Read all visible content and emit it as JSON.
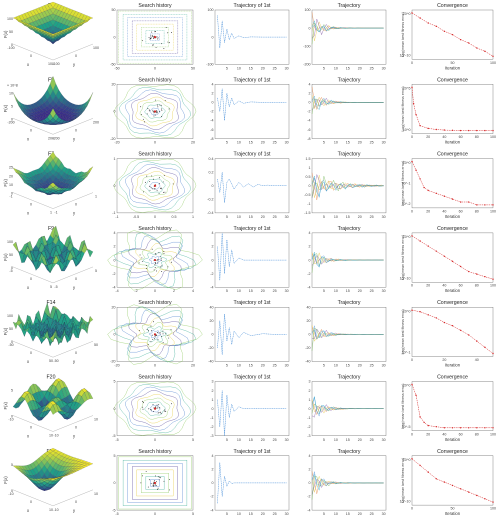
{
  "figure": {
    "rows": [
      {
        "func": "F4",
        "zlabel": "F(x)",
        "scale": "",
        "contour_title": "Search history",
        "first_title": "Trajectory of 1st",
        "traj_title": "Trajectory",
        "conv_title": "Convergence",
        "conv_ylabel": "Log(mean best fitness error)",
        "conv_xlabel": "Iteration"
      },
      {
        "func": "F5",
        "zlabel": "F(x)",
        "scale": "× 10^8",
        "contour_title": "Search history",
        "first_title": "Trajectory of 1st",
        "traj_title": "Trajectory",
        "conv_title": "Convergence",
        "conv_ylabel": "Log(mean best fitness error)",
        "conv_xlabel": "Iteration"
      },
      {
        "func": "F7",
        "zlabel": "F(x)",
        "scale": "",
        "contour_title": "Search history",
        "first_title": "Trajectory of 1st",
        "traj_title": "Trajectory",
        "conv_title": "Convergence",
        "conv_ylabel": "Log(mean best fitness error)",
        "conv_xlabel": "Iteration"
      },
      {
        "func": "F9",
        "zlabel": "F(x)",
        "scale": "",
        "contour_title": "Search history",
        "first_title": "Trajectory of 1st",
        "traj_title": "Trajectory",
        "conv_title": "Convergence",
        "conv_ylabel": "Log(mean best fitness error)",
        "conv_xlabel": "Iteration"
      },
      {
        "func": "F14",
        "zlabel": "F(x)",
        "scale": "",
        "contour_title": "Search history",
        "first_title": "Trajectory of 1st",
        "traj_title": "Trajectory",
        "conv_title": "Convergence",
        "conv_ylabel": "Log(mean best fitness error)",
        "conv_xlabel": "Iteration"
      },
      {
        "func": "F20",
        "zlabel": "F(x)",
        "scale": "",
        "contour_title": "Search history",
        "first_title": "Trajectory of 1st",
        "traj_title": "Trajectory",
        "conv_title": "Convergence",
        "conv_ylabel": "Log(mean best fitness error)",
        "conv_xlabel": "Iteration"
      },
      {
        "func": "F23",
        "zlabel": "F(x)",
        "scale": "",
        "contour_title": "Search history",
        "first_title": "Trajectory of 1st",
        "traj_title": "Trajectory",
        "conv_title": "Convergence",
        "conv_ylabel": "Log(mean best fitness error)",
        "conv_xlabel": "Iteration"
      }
    ],
    "colors": {
      "surface_low": "#3b2a8a",
      "surface_mid": "#1fa187",
      "surface_high": "#f8e825",
      "trajectory": "#4a90d9",
      "convergence": "#d62728",
      "search_points": "#222222"
    }
  },
  "chart_data": [
    {
      "type": "surface",
      "name": "F4",
      "xlim": [
        -100,
        100
      ],
      "ylim": [
        -100,
        100
      ],
      "xticks": [
        "-100",
        "0",
        "100"
      ],
      "yticks": [
        "-100",
        "0",
        "100"
      ],
      "zticks": [
        "0",
        "50",
        "100"
      ]
    },
    {
      "type": "surface",
      "name": "F5",
      "xticks": [
        "-200",
        "0",
        "200"
      ],
      "yticks": [
        "-200",
        "0",
        "200"
      ],
      "zticks": [
        "0",
        "5",
        "10"
      ]
    },
    {
      "type": "surface",
      "name": "F7",
      "xticks": [
        "-1",
        "0",
        "1"
      ],
      "yticks": [
        "-1",
        "0",
        "1"
      ],
      "zticks": [
        "0",
        "10",
        "20",
        "25"
      ]
    },
    {
      "type": "surface",
      "name": "F9",
      "xticks": [
        "-5",
        "0",
        "5"
      ],
      "yticks": [
        "-5",
        "0",
        "5"
      ],
      "zticks": [
        "0",
        "50",
        "100"
      ]
    },
    {
      "type": "surface",
      "name": "F14",
      "xticks": [
        "-50",
        "0",
        "50"
      ],
      "yticks": [
        "-50",
        "0",
        "50"
      ],
      "zticks": [
        "0",
        "50",
        "100"
      ]
    },
    {
      "type": "surface",
      "name": "F20",
      "xticks": [
        "-10",
        "0",
        "10"
      ],
      "yticks": [
        "-10",
        "0",
        "10"
      ],
      "zticks": [
        "0",
        "5"
      ]
    },
    {
      "type": "surface",
      "name": "F23",
      "xticks": [
        "-10",
        "0",
        "10"
      ],
      "yticks": [
        "-10",
        "0",
        "10"
      ],
      "zticks": [
        "0",
        "5"
      ]
    },
    {
      "type": "scatter",
      "name": "Search history F4",
      "xticks": [
        "-50",
        "0",
        "50"
      ],
      "yticks": [
        "-50",
        "0",
        "50"
      ]
    },
    {
      "type": "scatter",
      "name": "Search history F5",
      "xticks": [
        "-20",
        "0",
        "20"
      ],
      "yticks": [
        "-20",
        "0",
        "20"
      ]
    },
    {
      "type": "scatter",
      "name": "Search history F7",
      "xticks": [
        "-1",
        "-0.5",
        "0",
        "0.5",
        "1"
      ],
      "yticks": [
        "-1",
        "0",
        "1"
      ]
    },
    {
      "type": "scatter",
      "name": "Search history F9",
      "xticks": [
        "-4",
        "-2",
        "0",
        "2",
        "4"
      ],
      "yticks": [
        "-4",
        "-2",
        "0",
        "2",
        "4"
      ]
    },
    {
      "type": "scatter",
      "name": "Search history F14",
      "xticks": [
        "-20",
        "0",
        "20"
      ],
      "yticks": [
        "-20",
        "0",
        "20"
      ]
    },
    {
      "type": "scatter",
      "name": "Search history F20",
      "xticks": [
        "-5",
        "0",
        "5"
      ],
      "yticks": [
        "-5",
        "0",
        "5"
      ]
    },
    {
      "type": "scatter",
      "name": "Search history F23",
      "xticks": [
        "-5",
        "0",
        "5"
      ],
      "yticks": [
        "-5",
        "0",
        "5"
      ]
    },
    {
      "type": "line",
      "name": "Trajectory of 1st F4",
      "x": [
        1,
        2,
        3,
        4,
        5,
        6,
        7,
        8,
        10,
        12,
        15,
        20,
        25,
        30
      ],
      "y": [
        80,
        -40,
        60,
        -20,
        30,
        -10,
        15,
        -5,
        5,
        -2,
        1,
        0,
        0,
        0
      ],
      "ylim": [
        -100,
        100
      ],
      "xticks": [
        "5",
        "10",
        "15",
        "20",
        "25",
        "30"
      ],
      "yticks": [
        "-100",
        "0",
        "100"
      ]
    },
    {
      "type": "line",
      "name": "Trajectory of 1st F5",
      "x": [
        1,
        2,
        3,
        4,
        5,
        6,
        7,
        8,
        10,
        12,
        15,
        20,
        25,
        30
      ],
      "y": [
        1,
        -2,
        3,
        -4,
        2,
        -1,
        1,
        -0.5,
        0.3,
        -0.2,
        0.1,
        0,
        0,
        0
      ],
      "ylim": [
        -8,
        4
      ],
      "xticks": [
        "5",
        "10",
        "15",
        "20",
        "25",
        "30"
      ],
      "yticks": [
        "-8",
        "-6",
        "-4",
        "-2",
        "0",
        "2",
        "4"
      ]
    },
    {
      "type": "line",
      "name": "Trajectory of 1st F7",
      "x": [
        1,
        2,
        3,
        4,
        5,
        6,
        8,
        10,
        12,
        14,
        16,
        18,
        20,
        22,
        24,
        26,
        28,
        30
      ],
      "y": [
        0.1,
        -0.1,
        0.2,
        -0.25,
        0.05,
        0.1,
        -0.05,
        0.05,
        -0.02,
        0.03,
        -0.02,
        0.02,
        0,
        0.01,
        0,
        0,
        0,
        0
      ],
      "ylim": [
        -0.4,
        0.4
      ],
      "xticks": [
        "5",
        "10",
        "15",
        "20",
        "25",
        "30"
      ],
      "yticks": [
        "-0.4",
        "-0.2",
        "0",
        "0.2",
        "0.4"
      ]
    },
    {
      "type": "line",
      "name": "Trajectory of 1st F9",
      "x": [
        1,
        2,
        3,
        4,
        5,
        6,
        7,
        8,
        10,
        12,
        15,
        20,
        25,
        30
      ],
      "y": [
        2,
        -3,
        4,
        -2,
        3,
        -1,
        1.5,
        -0.5,
        0.3,
        0,
        0,
        0,
        0,
        0
      ],
      "ylim": [
        -4,
        4
      ],
      "xticks": [
        "5",
        "10",
        "15",
        "20",
        "25",
        "30"
      ],
      "yticks": [
        "-4",
        "-2",
        "0",
        "2",
        "4"
      ]
    },
    {
      "type": "line",
      "name": "Trajectory of 1st F14",
      "x": [
        1,
        2,
        3,
        4,
        5,
        6,
        7,
        8,
        10,
        12,
        15,
        20,
        25,
        30
      ],
      "y": [
        -20,
        20,
        -30,
        30,
        -10,
        10,
        -15,
        5,
        -5,
        3,
        -2,
        1,
        0,
        0
      ],
      "ylim": [
        -40,
        40
      ],
      "xticks": [
        "5",
        "10",
        "15",
        "20",
        "25",
        "30"
      ],
      "yticks": [
        "-40",
        "-20",
        "0",
        "20",
        "40"
      ]
    },
    {
      "type": "line",
      "name": "Trajectory of 1st F20",
      "x": [
        1,
        2,
        3,
        4,
        5,
        6,
        7,
        8,
        10,
        12,
        15,
        20,
        25,
        30
      ],
      "y": [
        1,
        -2,
        2,
        -3,
        1.5,
        -1,
        0.5,
        -0.3,
        0.2,
        0,
        0,
        0,
        0,
        0
      ],
      "ylim": [
        -3,
        3
      ],
      "xticks": [
        "5",
        "10",
        "15",
        "20",
        "25",
        "30"
      ],
      "yticks": [
        "-3",
        "-2",
        "-1",
        "0",
        "1",
        "2",
        "3"
      ]
    },
    {
      "type": "line",
      "name": "Trajectory of 1st F23",
      "x": [
        1,
        2,
        3,
        4,
        5,
        6,
        7,
        8,
        10,
        12,
        15,
        20,
        25,
        30
      ],
      "y": [
        -3,
        3,
        -2,
        1,
        -0.5,
        0.3,
        -0.1,
        0,
        0,
        0,
        0,
        0,
        0,
        0
      ],
      "ylim": [
        -4,
        4
      ],
      "xticks": [
        "5",
        "10",
        "15",
        "20",
        "25",
        "30"
      ],
      "yticks": [
        "-4",
        "-2",
        "0",
        "2",
        "4"
      ]
    },
    {
      "type": "line",
      "name": "Trajectory F4",
      "series_count": 6,
      "ylim": [
        -200,
        100
      ],
      "xticks": [
        "5",
        "10",
        "15",
        "20",
        "25",
        "30"
      ],
      "yticks": [
        "-200",
        "-100",
        "0",
        "100"
      ]
    },
    {
      "type": "line",
      "name": "Trajectory F5",
      "series_count": 6,
      "ylim": [
        -8,
        4
      ],
      "xticks": [
        "5",
        "10",
        "15",
        "20",
        "25",
        "30"
      ],
      "yticks": [
        "-8",
        "-6",
        "-4",
        "-2",
        "0",
        "2",
        "4"
      ]
    },
    {
      "type": "line",
      "name": "Trajectory F7",
      "series_count": 6,
      "ylim": [
        -1.5,
        1.5
      ],
      "xticks": [
        "5",
        "10",
        "15",
        "20",
        "25",
        "30"
      ],
      "yticks": [
        "-1.5",
        "-1",
        "-0.5",
        "0",
        "0.5",
        "1",
        "1.5"
      ]
    },
    {
      "type": "line",
      "name": "Trajectory F9",
      "series_count": 6,
      "ylim": [
        -4,
        4
      ],
      "xticks": [
        "5",
        "10",
        "15",
        "20",
        "25",
        "30"
      ],
      "yticks": [
        "-4",
        "-2",
        "0",
        "2",
        "4"
      ]
    },
    {
      "type": "line",
      "name": "Trajectory F14",
      "series_count": 6,
      "ylim": [
        -40,
        40
      ],
      "xticks": [
        "5",
        "10",
        "15",
        "20",
        "25",
        "30"
      ],
      "yticks": [
        "-40",
        "-20",
        "0",
        "20",
        "40"
      ]
    },
    {
      "type": "line",
      "name": "Trajectory F20",
      "series_count": 6,
      "ylim": [
        -3,
        3
      ],
      "xticks": [
        "5",
        "10",
        "15",
        "20",
        "25",
        "30"
      ],
      "yticks": [
        "-3",
        "-2",
        "-1",
        "0",
        "1",
        "2",
        "3"
      ]
    },
    {
      "type": "line",
      "name": "Trajectory F23",
      "series_count": 6,
      "ylim": [
        -4,
        4
      ],
      "xticks": [
        "5",
        "10",
        "15",
        "20",
        "25",
        "30"
      ],
      "yticks": [
        "-4",
        "-2",
        "0",
        "2",
        "4"
      ]
    },
    {
      "type": "line",
      "name": "Convergence F4",
      "x": [
        0,
        10,
        20,
        30,
        40,
        50,
        60,
        70,
        80,
        90,
        100
      ],
      "y": [
        0,
        -3,
        -6,
        -8,
        -11,
        -13,
        -16,
        -18,
        -21,
        -23,
        -26
      ],
      "xlim": [
        0,
        100
      ],
      "xticks": [
        "0",
        "50",
        "100"
      ],
      "yticks": [
        "10^0",
        "10^-10"
      ]
    },
    {
      "type": "line",
      "name": "Convergence F5",
      "x": [
        0,
        2,
        5,
        10,
        20,
        30,
        40,
        50,
        60,
        70,
        80,
        90,
        100
      ],
      "y": [
        8,
        5,
        3,
        1,
        0.5,
        0.3,
        0.2,
        0.15,
        0.1,
        0.1,
        0.1,
        0.1,
        0.1
      ],
      "xlim": [
        0,
        100
      ],
      "xticks": [
        "0",
        "20",
        "40",
        "60",
        "80",
        "100"
      ],
      "yticks": [
        "10^5",
        "10^0"
      ]
    },
    {
      "type": "line",
      "name": "Convergence F7",
      "x": [
        0,
        5,
        10,
        15,
        20,
        30,
        40,
        50,
        60,
        70,
        80,
        90,
        100
      ],
      "y": [
        0,
        -0.3,
        -0.6,
        -0.9,
        -1,
        -1.1,
        -1.2,
        -1.3,
        -1.4,
        -1.4,
        -1.5,
        -1.5,
        -1.5
      ],
      "xlim": [
        0,
        100
      ],
      "xticks": [
        "0",
        "20",
        "40",
        "60",
        "80",
        "100"
      ],
      "yticks": [
        "10^0",
        "10^-1",
        "10^-2"
      ]
    },
    {
      "type": "line",
      "name": "Convergence F9",
      "x": [
        0,
        10,
        20,
        30,
        40,
        50,
        60,
        70,
        80,
        90,
        100
      ],
      "y": [
        2,
        0,
        -2,
        -4,
        -6,
        -8,
        -10,
        -12,
        -13,
        -14,
        -15
      ],
      "xlim": [
        0,
        100
      ],
      "xticks": [
        "0",
        "20",
        "40",
        "60",
        "80",
        "100"
      ],
      "yticks": [
        "10^0",
        "10^-10"
      ]
    },
    {
      "type": "line",
      "name": "Convergence F14",
      "x": [
        0,
        5,
        10,
        15,
        20,
        25,
        30,
        35,
        40,
        45,
        50
      ],
      "y": [
        1,
        0.9,
        0.7,
        0.5,
        0.2,
        0,
        -0.3,
        -0.6,
        -1,
        -1.4,
        -1.8
      ],
      "xlim": [
        0,
        50
      ],
      "xticks": [
        "0",
        "20",
        "40"
      ],
      "yticks": [
        "10^0",
        "10^-1"
      ]
    },
    {
      "type": "line",
      "name": "Convergence F20",
      "x": [
        0,
        5,
        10,
        15,
        20,
        30,
        40,
        50,
        60,
        70,
        80,
        90,
        100
      ],
      "y": [
        0.4,
        0.3,
        0.1,
        0.05,
        0.02,
        0.01,
        0,
        0,
        0,
        0,
        0,
        0,
        0
      ],
      "xlim": [
        0,
        100
      ],
      "xticks": [
        "0",
        "20",
        "40",
        "60",
        "80",
        "100"
      ],
      "yticks": [
        "10^0",
        "10^-5"
      ]
    },
    {
      "type": "line",
      "name": "Convergence F23",
      "x": [
        0,
        10,
        20,
        30,
        40,
        50,
        60,
        70,
        80,
        90,
        100
      ],
      "y": [
        0,
        -2,
        -4,
        -6,
        -7,
        -8,
        -9,
        -10,
        -11,
        -12,
        -13
      ],
      "xlim": [
        0,
        100
      ],
      "xticks": [
        "0",
        "50",
        "100"
      ],
      "yticks": [
        "10^0",
        "10^-10"
      ]
    }
  ]
}
